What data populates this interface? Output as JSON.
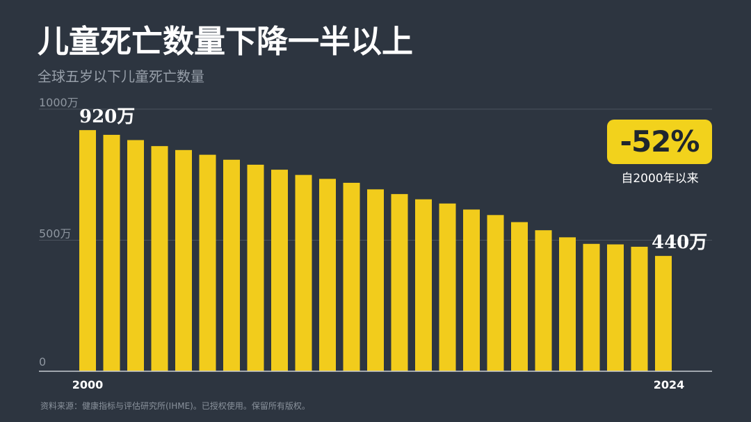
{
  "header": {
    "title": "儿童死亡数量下降一半以上",
    "subtitle": "全球五岁以下儿童死亡数量"
  },
  "chart_data": {
    "type": "bar",
    "x": [
      2000,
      2001,
      2002,
      2003,
      2004,
      2005,
      2006,
      2007,
      2008,
      2009,
      2010,
      2011,
      2012,
      2013,
      2014,
      2015,
      2016,
      2017,
      2018,
      2019,
      2020,
      2021,
      2022,
      2023,
      2024
    ],
    "values": [
      920,
      902,
      882,
      859,
      844,
      826,
      807,
      788,
      769,
      749,
      734,
      719,
      694,
      676,
      656,
      640,
      617,
      596,
      569,
      538,
      511,
      486,
      484,
      475,
      440
    ],
    "unit": "万",
    "ylim": [
      0,
      1000
    ],
    "y_ticks": [
      {
        "value": 0,
        "label": "0"
      },
      {
        "value": 500,
        "label": "500万"
      },
      {
        "value": 1000,
        "label": "1000万"
      }
    ],
    "x_tick_labels": [
      {
        "index": 0,
        "label": "2000"
      },
      {
        "index": 24,
        "label": "2024"
      }
    ],
    "data_labels": [
      {
        "index": 0,
        "label": "920万"
      },
      {
        "index": 24,
        "label": "440万"
      }
    ],
    "grid": true,
    "colors": {
      "bar": "#f2cc1c",
      "grid": "#4a535e",
      "axis": "#c7ccd2",
      "tick_label": "#8e96a0",
      "background": "#2d3540"
    }
  },
  "callout": {
    "change": "-52%",
    "caption": "自2000年以来",
    "color": "#f2d21c"
  },
  "source": "资料来源：健康指标与评估研究所(IHME)。已授权使用。保留所有版权。"
}
